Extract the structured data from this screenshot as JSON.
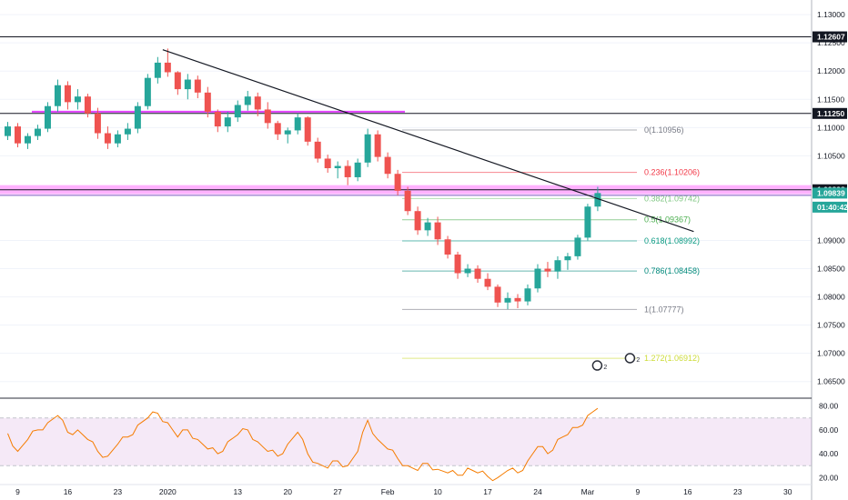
{
  "chart_data": {
    "type": "candlestick",
    "symbol_scale": "price",
    "price_axis": {
      "ticks": [
        {
          "v": 1.13,
          "label": "1.13000"
        },
        {
          "v": 1.125,
          "label": "1.12500"
        },
        {
          "v": 1.12,
          "label": "1.12000"
        },
        {
          "v": 1.115,
          "label": "1.11500"
        },
        {
          "v": 1.11,
          "label": "1.11000"
        },
        {
          "v": 1.105,
          "label": "1.10500"
        },
        {
          "v": 1.09,
          "label": "1.09000"
        },
        {
          "v": 1.085,
          "label": "1.08500"
        },
        {
          "v": 1.08,
          "label": "1.08000"
        },
        {
          "v": 1.075,
          "label": "1.07500"
        },
        {
          "v": 1.07,
          "label": "1.07000"
        },
        {
          "v": 1.065,
          "label": "1.06500"
        }
      ],
      "ylim": [
        1.0627,
        1.1326
      ]
    },
    "price_tags": [
      {
        "v": 1.12607,
        "label": "1.12607",
        "bg": "#131722",
        "fg": "#ffffff"
      },
      {
        "v": 1.1125,
        "label": "1.11250",
        "bg": "#131722",
        "fg": "#ffffff"
      },
      {
        "v": 1.09898,
        "label": "1.09898",
        "bg": "#131722",
        "fg": "#ffffff"
      },
      {
        "v": 1.09839,
        "label": "1.09839",
        "bg": "#26a69a",
        "fg": "#ffffff"
      },
      {
        "v": 1.0959,
        "label": "01:40:42",
        "bg": "#26a69a",
        "fg": "#ffffff"
      }
    ],
    "x_axis": {
      "labels": [
        {
          "i": 1,
          "label": "9"
        },
        {
          "i": 6,
          "label": "16"
        },
        {
          "i": 11,
          "label": "23"
        },
        {
          "i": 16,
          "label": "2020"
        },
        {
          "i": 23,
          "label": "13"
        },
        {
          "i": 28,
          "label": "20"
        },
        {
          "i": 33,
          "label": "27"
        },
        {
          "i": 38,
          "label": "Feb"
        },
        {
          "i": 43,
          "label": "10"
        },
        {
          "i": 48,
          "label": "17"
        },
        {
          "i": 53,
          "label": "24"
        },
        {
          "i": 58,
          "label": "Mar"
        },
        {
          "i": 63,
          "label": "9"
        },
        {
          "i": 68,
          "label": "16"
        },
        {
          "i": 73,
          "label": "23"
        },
        {
          "i": 78,
          "label": "30"
        }
      ]
    },
    "candles": [
      [
        1.1085,
        1.111,
        1.1078,
        1.1102
      ],
      [
        1.1102,
        1.1108,
        1.1065,
        1.1072
      ],
      [
        1.1072,
        1.109,
        1.1062,
        1.1085
      ],
      [
        1.1085,
        1.1105,
        1.1078,
        1.1098
      ],
      [
        1.1098,
        1.1145,
        1.1092,
        1.1138
      ],
      [
        1.1138,
        1.1185,
        1.1128,
        1.1175
      ],
      [
        1.1175,
        1.1182,
        1.1132,
        1.1145
      ],
      [
        1.1145,
        1.1168,
        1.1132,
        1.1155
      ],
      [
        1.1155,
        1.116,
        1.1118,
        1.1125
      ],
      [
        1.1125,
        1.1135,
        1.108,
        1.109
      ],
      [
        1.109,
        1.1102,
        1.1062,
        1.1072
      ],
      [
        1.1072,
        1.1095,
        1.1065,
        1.1088
      ],
      [
        1.1088,
        1.1108,
        1.1078,
        1.1098
      ],
      [
        1.1098,
        1.1145,
        1.109,
        1.1138
      ],
      [
        1.1138,
        1.1195,
        1.1132,
        1.1188
      ],
      [
        1.1188,
        1.1225,
        1.1178,
        1.1215
      ],
      [
        1.1215,
        1.124,
        1.119,
        1.1198
      ],
      [
        1.1198,
        1.12,
        1.1158,
        1.1168
      ],
      [
        1.1168,
        1.1195,
        1.115,
        1.1185
      ],
      [
        1.1185,
        1.1192,
        1.1152,
        1.1162
      ],
      [
        1.1162,
        1.1172,
        1.1118,
        1.1128
      ],
      [
        1.1128,
        1.1132,
        1.1092,
        1.1102
      ],
      [
        1.1102,
        1.1128,
        1.1092,
        1.1118
      ],
      [
        1.1118,
        1.1148,
        1.111,
        1.114
      ],
      [
        1.114,
        1.1165,
        1.113,
        1.1155
      ],
      [
        1.1155,
        1.1162,
        1.112,
        1.1132
      ],
      [
        1.1132,
        1.1145,
        1.1098,
        1.1108
      ],
      [
        1.1108,
        1.1112,
        1.1078,
        1.1088
      ],
      [
        1.1088,
        1.11,
        1.1072,
        1.1095
      ],
      [
        1.1095,
        1.1125,
        1.1088,
        1.1118
      ],
      [
        1.1118,
        1.112,
        1.1068,
        1.1075
      ],
      [
        1.1075,
        1.1082,
        1.1038,
        1.1045
      ],
      [
        1.1045,
        1.1052,
        1.102,
        1.1028
      ],
      [
        1.1028,
        1.104,
        1.101,
        1.1032
      ],
      [
        1.1032,
        1.1042,
        1.0998,
        1.1012
      ],
      [
        1.1012,
        1.1045,
        1.1005,
        1.1038
      ],
      [
        1.1038,
        1.1098,
        1.103,
        1.1088
      ],
      [
        1.1088,
        1.1095,
        1.104,
        1.1048
      ],
      [
        1.1048,
        1.1056,
        1.101,
        1.1018
      ],
      [
        1.1018,
        1.1025,
        1.098,
        1.0988
      ],
      [
        1.0988,
        1.0995,
        1.0945,
        1.0952
      ],
      [
        1.0952,
        1.096,
        1.091,
        1.0918
      ],
      [
        1.0918,
        1.094,
        1.0908,
        1.0932
      ],
      [
        1.0932,
        1.0942,
        1.0892,
        1.0902
      ],
      [
        1.0902,
        1.0908,
        1.0868,
        1.0875
      ],
      [
        1.0875,
        1.088,
        1.0832,
        1.0842
      ],
      [
        1.0842,
        1.0858,
        1.0835,
        1.085
      ],
      [
        1.085,
        1.0856,
        1.0825,
        1.0832
      ],
      [
        1.0832,
        1.0842,
        1.0812,
        1.0818
      ],
      [
        1.0818,
        1.0822,
        1.0782,
        1.079
      ],
      [
        1.079,
        1.0808,
        1.0778,
        1.0798
      ],
      [
        1.0798,
        1.0805,
        1.078,
        1.0792
      ],
      [
        1.0792,
        1.0822,
        1.0785,
        1.0815
      ],
      [
        1.0815,
        1.0858,
        1.0808,
        1.085
      ],
      [
        1.085,
        1.0862,
        1.0835,
        1.0845
      ],
      [
        1.0845,
        1.0872,
        1.0832,
        1.0865
      ],
      [
        1.0865,
        1.0878,
        1.0848,
        1.0872
      ],
      [
        1.0872,
        1.091,
        1.0866,
        1.0905
      ],
      [
        1.0905,
        1.0965,
        1.09,
        1.096
      ],
      [
        1.096,
        1.0995,
        1.0952,
        1.0984
      ]
    ],
    "series": [
      {
        "name": "",
        "type": "resistance",
        "v": 1.12607
      },
      {
        "name": "",
        "type": "resistance",
        "v": 1.1125
      }
    ],
    "zones": [
      {
        "from": 1.0982,
        "to": 1.0998,
        "color": "#ff55ff"
      }
    ],
    "trendline": {
      "from": {
        "i": 15.5,
        "v": 1.1238
      },
      "to": {
        "i": 60.5,
        "v": 1.0965
      }
    },
    "fibonacci": {
      "levels": [
        {
          "ratio": 0,
          "price": 1.10956,
          "label": "0(1.10956)",
          "color": "#787b86"
        },
        {
          "ratio": 0.236,
          "price": 1.10206,
          "label": "0.236(1.10206)",
          "color": "#f23645"
        },
        {
          "ratio": 0.382,
          "price": 1.09742,
          "label": "0.382(1.09742)",
          "color": "#81c784"
        },
        {
          "ratio": 0.5,
          "price": 1.09367,
          "label": "0.5(1.09367)",
          "color": "#4caf50"
        },
        {
          "ratio": 0.618,
          "price": 1.08992,
          "label": "0.618(1.08992)",
          "color": "#089981"
        },
        {
          "ratio": 0.786,
          "price": 1.08458,
          "label": "0.786(1.08458)",
          "color": "#00897b"
        },
        {
          "ratio": 1,
          "price": 1.07777,
          "label": "1(1.07777)",
          "color": "#787b86"
        },
        {
          "ratio": 1.272,
          "price": 1.06912,
          "label": "1.272(1.06912)",
          "color": "#cddc39"
        }
      ]
    },
    "rsi": {
      "ylim": [
        15,
        85
      ],
      "ticks": [
        80,
        60,
        40,
        20
      ],
      "tick_labels": [
        "80.00",
        "60.00",
        "40.00",
        "20.00"
      ],
      "band": [
        30,
        70
      ],
      "values": [
        57,
        42,
        52,
        60,
        66,
        72,
        58,
        60,
        52,
        42,
        38,
        48,
        54,
        64,
        70,
        74,
        66,
        54,
        60,
        52,
        44,
        40,
        50,
        56,
        60,
        50,
        42,
        38,
        48,
        58,
        40,
        32,
        28,
        34,
        30,
        42,
        68,
        52,
        44,
        36,
        30,
        26,
        32,
        27,
        24,
        22,
        28,
        24,
        21,
        20,
        26,
        24,
        34,
        46,
        40,
        52,
        56,
        62,
        72,
        78
      ]
    },
    "annotations": [
      {
        "text": "2",
        "i": 60.5,
        "v": 1.0685
      },
      {
        "text": "2",
        "i": 59.5,
        "v": 1.0672
      }
    ],
    "colors": {
      "up": "#26a69a",
      "down": "#ef5350",
      "rsi_line": "#f57c00",
      "rsi_band": "#9c27b0"
    }
  }
}
